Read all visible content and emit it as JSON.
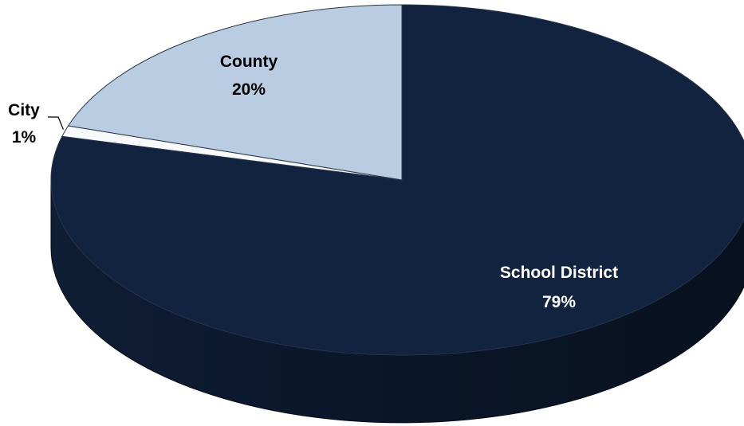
{
  "chart_data": {
    "type": "pie",
    "title": "",
    "slices": [
      {
        "label": "School District",
        "value": 79,
        "value_label": "79%",
        "color": "#12233f",
        "text_color": "#ffffff"
      },
      {
        "label": "City",
        "value": 1,
        "value_label": "1%",
        "color": "#f8f9fb",
        "text_color": "#000000"
      },
      {
        "label": "County",
        "value": 20,
        "value_label": "20%",
        "color": "#b9cce2",
        "text_color": "#000000"
      }
    ],
    "style": "3d",
    "legend": "none",
    "data_labels": "category name and percentage"
  }
}
